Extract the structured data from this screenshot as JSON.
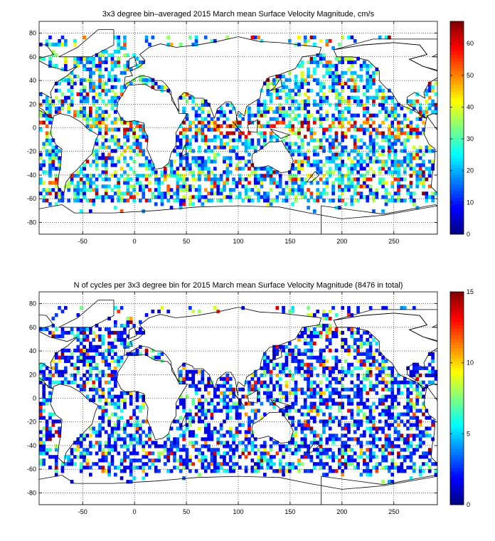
{
  "chart_data": [
    {
      "type": "heatmap",
      "title": "3x3 degree bin–averaged 2015 March mean Surface Velocity Magnitude, cm/s",
      "xlim": [
        -92,
        292
      ],
      "ylim": [
        -90,
        90
      ],
      "xticks": [
        -50,
        0,
        50,
        100,
        150,
        200,
        250
      ],
      "yticks": [
        -80,
        -60,
        -40,
        -20,
        0,
        20,
        40,
        60,
        80
      ],
      "grid": true,
      "bin_deg": 3,
      "colorbar": {
        "min": 0,
        "max": 67,
        "ticks": [
          0,
          10,
          20,
          30,
          40,
          50,
          60
        ],
        "colormap": "jet"
      },
      "cell_value_range": [
        0,
        67
      ]
    },
    {
      "type": "heatmap",
      "title": "N of cycles per 3x3 degree bin for 2015 March mean Surface Velocity Magnitude (8476 in total)",
      "xlim": [
        -92,
        292
      ],
      "ylim": [
        -90,
        90
      ],
      "xticks": [
        -50,
        0,
        50,
        100,
        150,
        200,
        250
      ],
      "yticks": [
        -80,
        -60,
        -40,
        -20,
        0,
        20,
        40,
        60,
        80
      ],
      "grid": true,
      "bin_deg": 3,
      "colorbar": {
        "min": 0,
        "max": 15,
        "ticks": [
          0,
          5,
          10,
          15
        ],
        "colormap": "jet"
      },
      "cell_value_range": [
        0,
        15
      ]
    }
  ]
}
